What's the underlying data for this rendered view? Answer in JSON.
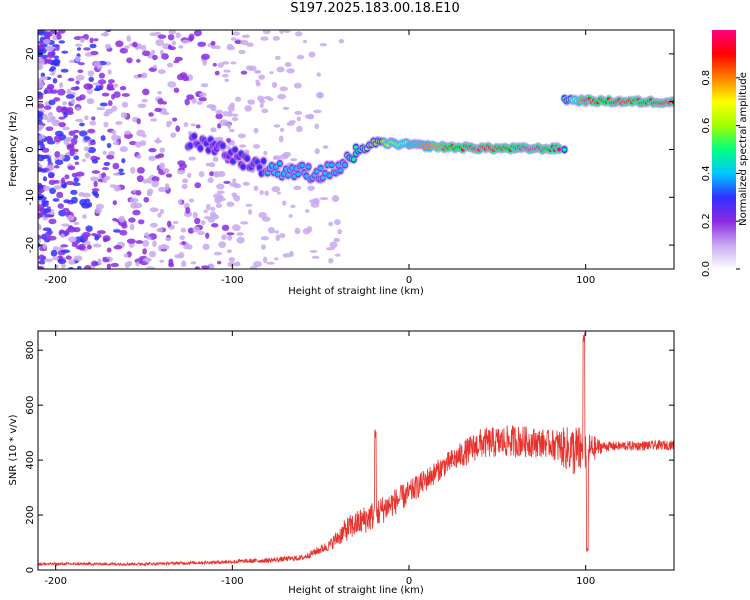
{
  "title": "S197.2025.183.00.18.E10",
  "chart_data": [
    {
      "type": "heatmap",
      "xlabel": "Height of straight line (km)",
      "ylabel": "Frequency (Hz)",
      "xlim": [
        -210,
        150
      ],
      "ylim": [
        -25,
        25
      ],
      "xticks": [
        -200,
        -100,
        0,
        100
      ],
      "yticks": [
        -20,
        -10,
        0,
        10,
        20
      ],
      "colorbar": {
        "label": "Normalized spectral amplitude",
        "range": [
          0,
          1
        ],
        "ticks": [
          "0.0",
          "0.2",
          "0.4",
          "0.6",
          "0.8"
        ],
        "ramp": [
          "#ffffff",
          "#c8a8f0",
          "#8a2be2",
          "#3030ff",
          "#00c8ff",
          "#00ff80",
          "#a0ff00",
          "#ffff00",
          "#ff8000",
          "#ff0000",
          "#ff0080"
        ]
      },
      "track": [
        {
          "x": -125,
          "y": 1.5,
          "a": 0.25
        },
        {
          "x": -110,
          "y": 1.0,
          "a": 0.3
        },
        {
          "x": -95,
          "y": -2.0,
          "a": 0.3
        },
        {
          "x": -80,
          "y": -4.0,
          "a": 0.35
        },
        {
          "x": -65,
          "y": -4.5,
          "a": 0.35
        },
        {
          "x": -50,
          "y": -5.0,
          "a": 0.35
        },
        {
          "x": -40,
          "y": -4.0,
          "a": 0.4
        },
        {
          "x": -30,
          "y": -1.0,
          "a": 0.5
        },
        {
          "x": -20,
          "y": 1.5,
          "a": 0.6
        },
        {
          "x": 0,
          "y": 1.0,
          "a": 0.75
        },
        {
          "x": 20,
          "y": 0.5,
          "a": 0.85
        },
        {
          "x": 40,
          "y": 0.3,
          "a": 0.9
        },
        {
          "x": 60,
          "y": 0.2,
          "a": 0.95
        },
        {
          "x": 85,
          "y": 0.2,
          "a": 0.95
        },
        {
          "x": 88,
          "y": 10.5,
          "a": 0.5
        },
        {
          "x": 100,
          "y": 10.2,
          "a": 0.9
        },
        {
          "x": 130,
          "y": 10.0,
          "a": 0.95
        },
        {
          "x": 150,
          "y": 10.0,
          "a": 0.9
        }
      ]
    },
    {
      "type": "line",
      "xlabel": "Height of straight line (km)",
      "ylabel": "SNR (10 * v/v)",
      "xlim": [
        -210,
        150
      ],
      "ylim": [
        0,
        870
      ],
      "xticks": [
        -200,
        -100,
        0,
        100
      ],
      "yticks": [
        0,
        200,
        400,
        600,
        800
      ],
      "color": "#e8322d",
      "envelope": [
        {
          "x": -210,
          "mean": 22,
          "spread": 10
        },
        {
          "x": -150,
          "mean": 22,
          "spread": 10
        },
        {
          "x": -110,
          "mean": 28,
          "spread": 12
        },
        {
          "x": -80,
          "mean": 35,
          "spread": 18
        },
        {
          "x": -60,
          "mean": 45,
          "spread": 20
        },
        {
          "x": -45,
          "mean": 90,
          "spread": 40
        },
        {
          "x": -35,
          "mean": 150,
          "spread": 90
        },
        {
          "x": -20,
          "mean": 200,
          "spread": 110
        },
        {
          "x": 0,
          "mean": 280,
          "spread": 90
        },
        {
          "x": 20,
          "mean": 380,
          "spread": 80
        },
        {
          "x": 40,
          "mean": 460,
          "spread": 110
        },
        {
          "x": 60,
          "mean": 470,
          "spread": 120
        },
        {
          "x": 80,
          "mean": 460,
          "spread": 100
        },
        {
          "x": 95,
          "mean": 430,
          "spread": 200
        },
        {
          "x": 110,
          "mean": 450,
          "spread": 35
        },
        {
          "x": 150,
          "mean": 455,
          "spread": 35
        }
      ],
      "features": [
        {
          "x": -19,
          "peak": 520
        },
        {
          "x": 99,
          "peak": 870
        },
        {
          "x": 101,
          "trough": 60
        }
      ]
    }
  ]
}
